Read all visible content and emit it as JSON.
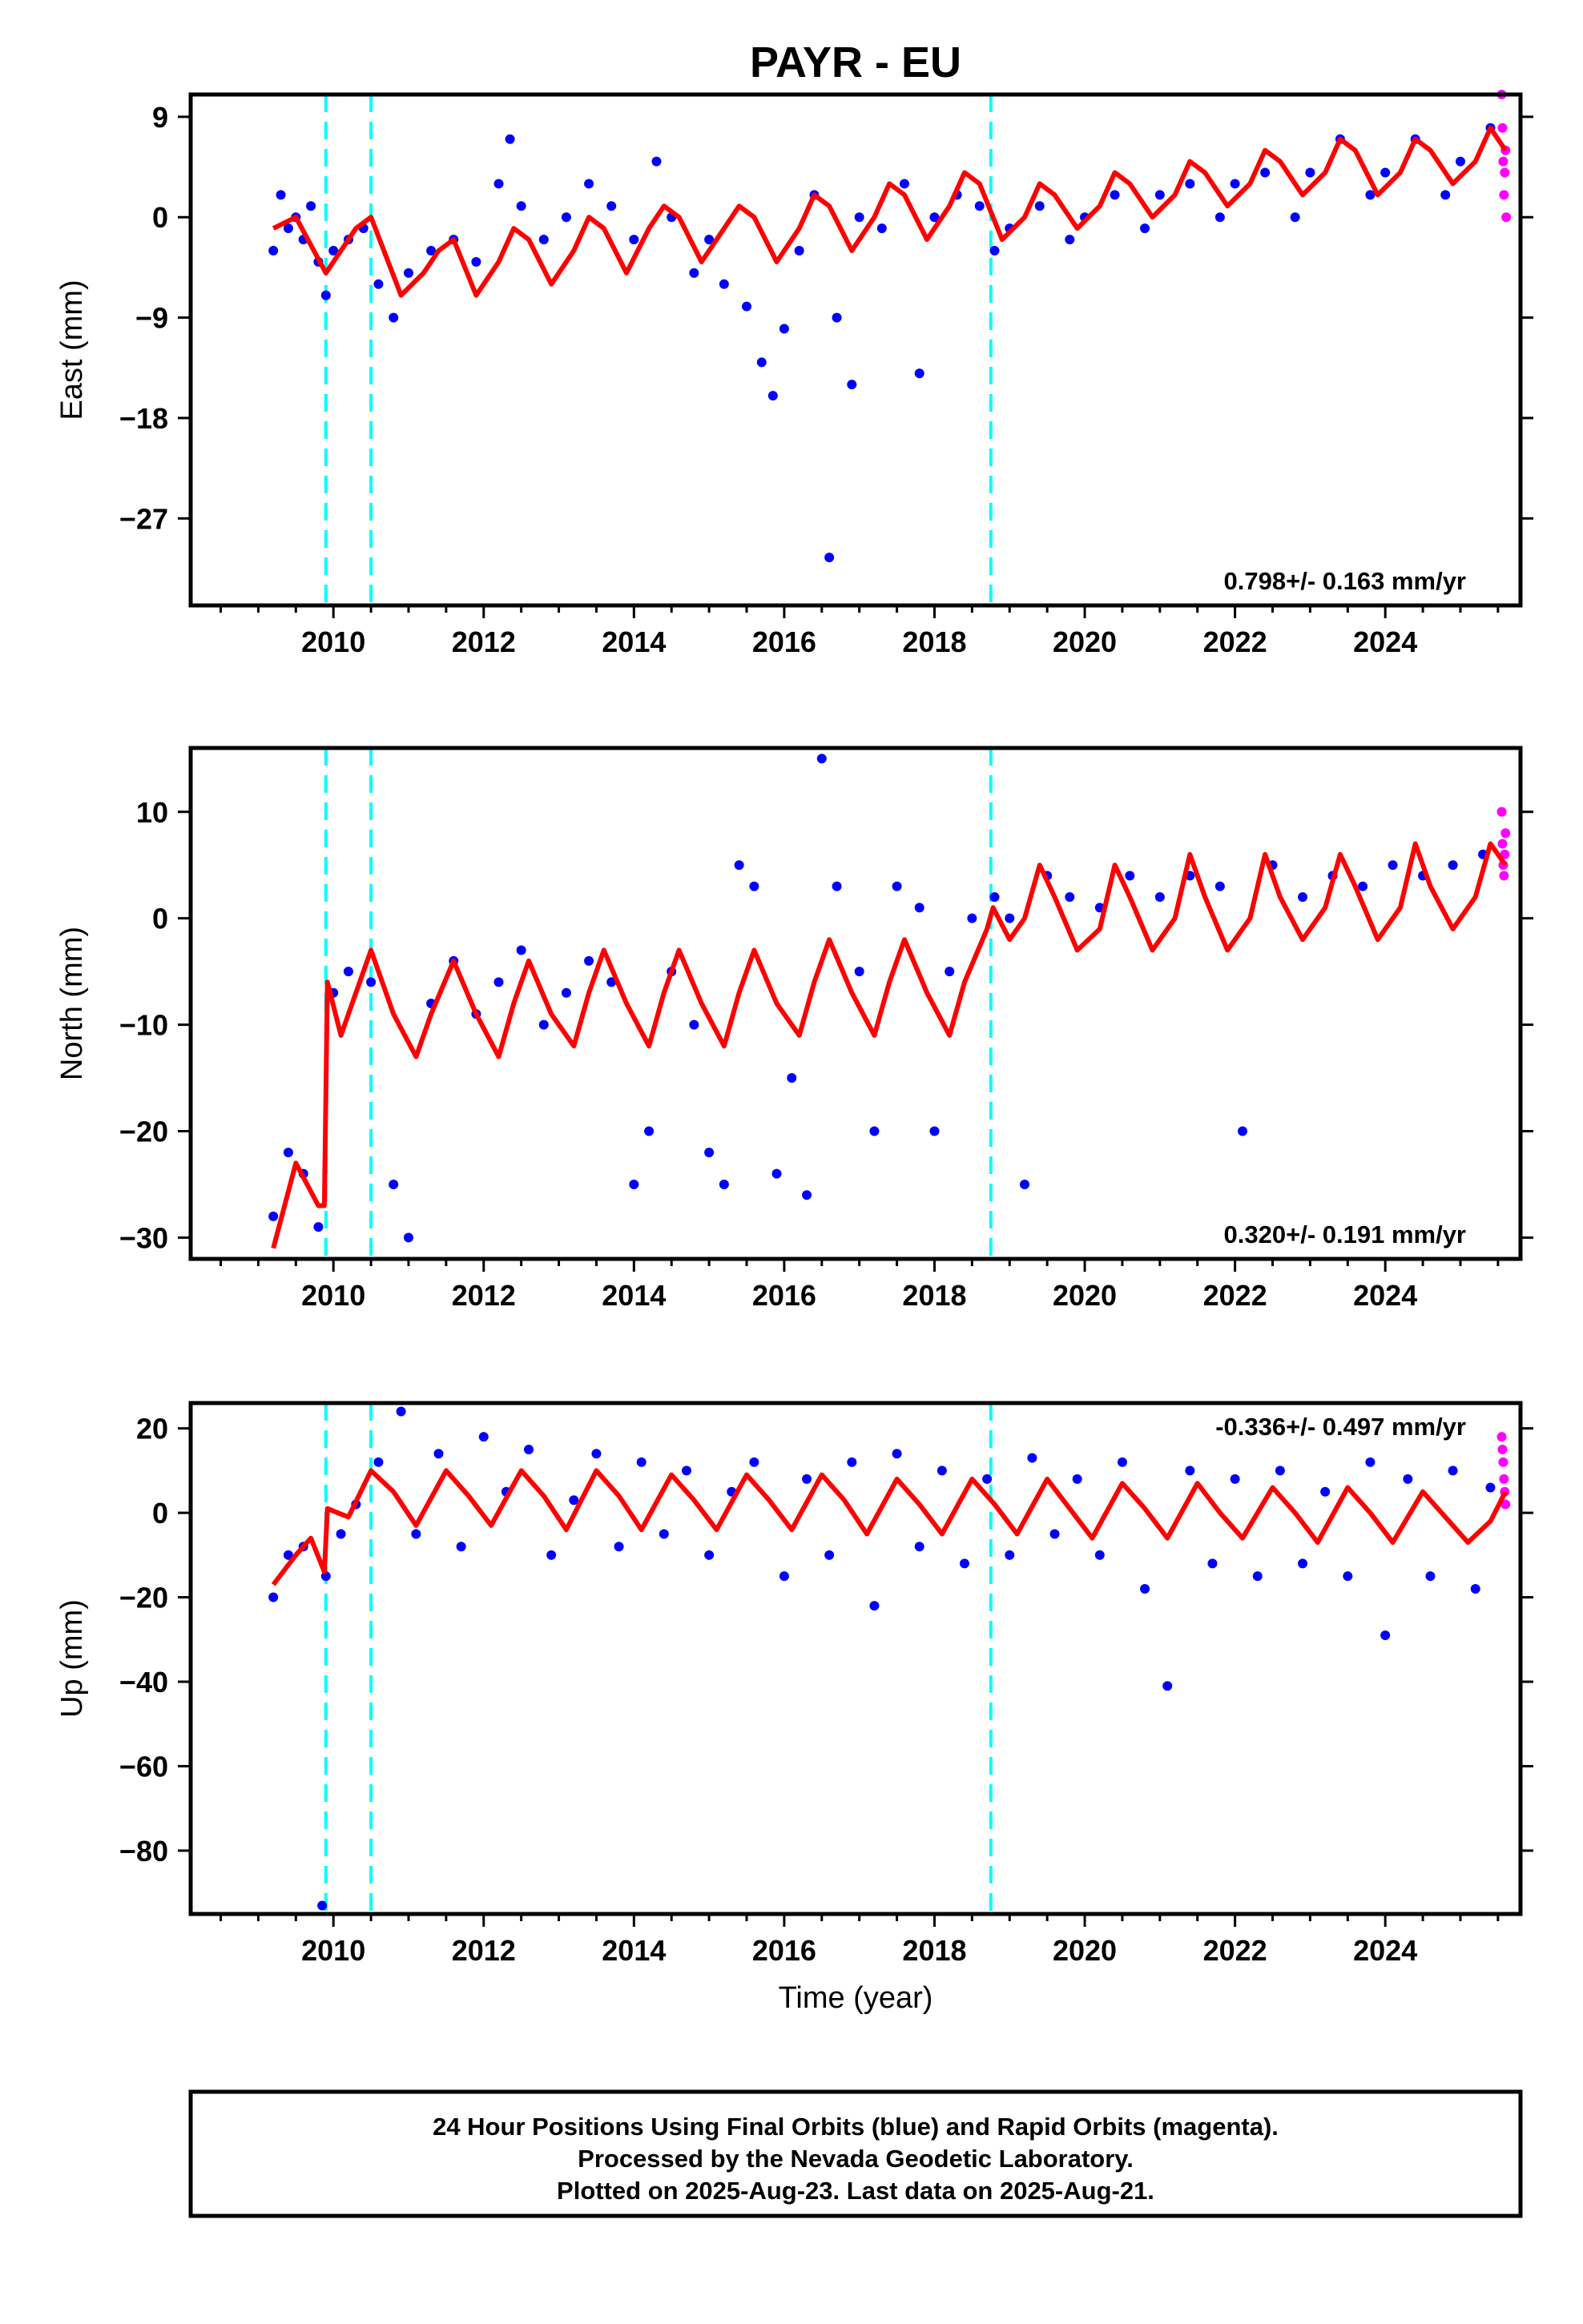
{
  "title": "PAYR - EU",
  "xlabel": "Time (year)",
  "footer": {
    "line1": "24 Hour Positions Using Final Orbits (blue) and Rapid Orbits (magenta).",
    "line2": "Processed by the Nevada Geodetic Laboratory.",
    "line3": "Plotted on 2025-Aug-23. Last data on 2025-Aug-21."
  },
  "colors": {
    "final": "#0000ff",
    "rapid": "#ff00ff",
    "model": "#ff0000",
    "offsets": "#00ffff"
  },
  "chart_data": [
    {
      "type": "scatter",
      "ylabel": "East (mm)",
      "rate": "0.798+/- 0.163 mm/yr",
      "rate_position": "bottom-right",
      "xlim": [
        2008.1,
        2025.8
      ],
      "ylim": [
        -34.8,
        11
      ],
      "xticks": [
        2010,
        2012,
        2014,
        2016,
        2018,
        2020,
        2022,
        2024
      ],
      "yticks": [
        9,
        0,
        -9,
        -18,
        -27
      ],
      "tick_labels": [
        "9",
        "0",
        "−9",
        "−18",
        "−27"
      ],
      "x_tick_labels": [
        "2010",
        "2012",
        "2014",
        "2016",
        "2018",
        "2020",
        "2022",
        "2024"
      ],
      "offset_lines": [
        2009.9,
        2010.5,
        2018.75
      ],
      "series": [
        {
          "name": "Final Orbits (blue)",
          "style": "points",
          "x": [
            2009.2,
            2009.3,
            2009.4,
            2009.5,
            2009.6,
            2009.7,
            2009.8,
            2009.9,
            2010.0,
            2010.2,
            2010.4,
            2010.6,
            2010.8,
            2011.0,
            2011.3,
            2011.6,
            2011.9,
            2012.2,
            2012.35,
            2012.5,
            2012.8,
            2013.1,
            2013.4,
            2013.7,
            2014.0,
            2014.3,
            2014.5,
            2014.8,
            2015.0,
            2015.2,
            2015.5,
            2015.7,
            2015.85,
            2016.0,
            2016.2,
            2016.4,
            2016.6,
            2016.7,
            2016.9,
            2017.0,
            2017.3,
            2017.6,
            2017.8,
            2018.0,
            2018.3,
            2018.6,
            2018.8,
            2019.0,
            2019.4,
            2019.8,
            2020.0,
            2020.4,
            2020.8,
            2021.0,
            2021.4,
            2021.8,
            2022.0,
            2022.4,
            2022.8,
            2023.0,
            2023.4,
            2023.8,
            2024.0,
            2024.4,
            2024.8,
            2025.0,
            2025.4
          ],
          "y": [
            -3,
            2,
            -1,
            0,
            -2,
            1,
            -4,
            -7,
            -3,
            -2,
            -1,
            -6,
            -9,
            -5,
            -3,
            -2,
            -4,
            3,
            7,
            1,
            -2,
            0,
            3,
            1,
            -2,
            5,
            0,
            -5,
            -2,
            -6,
            -8,
            -13,
            -16,
            -10,
            -3,
            2,
            -30.5,
            -9,
            -15,
            0,
            -1,
            3,
            -14,
            0,
            2,
            1,
            -3,
            -1,
            1,
            -2,
            0,
            2,
            -1,
            2,
            3,
            0,
            3,
            4,
            0,
            4,
            7,
            2,
            4,
            7,
            2,
            5,
            8
          ]
        },
        {
          "name": "Rapid Orbits (magenta)",
          "style": "points",
          "x": [
            2025.55,
            2025.56,
            2025.57,
            2025.58,
            2025.59,
            2025.6,
            2025.61
          ],
          "y": [
            11,
            8,
            5,
            2,
            4,
            6,
            0
          ]
        },
        {
          "name": "Model fit",
          "style": "line",
          "x": [
            2009.2,
            2009.5,
            2009.9,
            2010.1,
            2010.3,
            2010.5,
            2010.9,
            2011.2,
            2011.4,
            2011.6,
            2011.9,
            2012.2,
            2012.4,
            2012.6,
            2012.9,
            2013.2,
            2013.4,
            2013.6,
            2013.9,
            2014.2,
            2014.4,
            2014.6,
            2014.9,
            2015.2,
            2015.4,
            2015.6,
            2015.9,
            2016.2,
            2016.4,
            2016.6,
            2016.9,
            2017.2,
            2017.4,
            2017.6,
            2017.9,
            2018.2,
            2018.4,
            2018.6,
            2018.9,
            2019.2,
            2019.4,
            2019.6,
            2019.9,
            2020.2,
            2020.4,
            2020.6,
            2020.9,
            2021.2,
            2021.4,
            2021.6,
            2021.9,
            2022.2,
            2022.4,
            2022.6,
            2022.9,
            2023.2,
            2023.4,
            2023.6,
            2023.9,
            2024.2,
            2024.4,
            2024.6,
            2024.9,
            2025.2,
            2025.4,
            2025.6
          ],
          "y": [
            -1,
            0,
            -5,
            -3,
            -1,
            0,
            -7,
            -5,
            -3,
            -2,
            -7,
            -4,
            -1,
            -2,
            -6,
            -3,
            0,
            -1,
            -5,
            -1,
            1,
            0,
            -4,
            -1,
            1,
            0,
            -4,
            -1,
            2,
            1,
            -3,
            0,
            3,
            2,
            -2,
            1,
            4,
            3,
            -2,
            0,
            3,
            2,
            -1,
            1,
            4,
            3,
            0,
            2,
            5,
            4,
            1,
            3,
            6,
            5,
            2,
            4,
            7,
            6,
            2,
            4,
            7,
            6,
            3,
            5,
            8,
            6
          ]
        }
      ]
    },
    {
      "type": "scatter",
      "ylabel": "North (mm)",
      "rate": "0.320+/- 0.191 mm/yr",
      "rate_position": "bottom-right",
      "xlim": [
        2008.1,
        2025.8
      ],
      "ylim": [
        -32,
        16
      ],
      "xticks": [
        2010,
        2012,
        2014,
        2016,
        2018,
        2020,
        2022,
        2024
      ],
      "yticks": [
        10,
        0,
        -10,
        -20,
        -30
      ],
      "tick_labels": [
        "10",
        "0",
        "−10",
        "−20",
        "−30"
      ],
      "x_tick_labels": [
        "2010",
        "2012",
        "2014",
        "2016",
        "2018",
        "2020",
        "2022",
        "2024"
      ],
      "offset_lines": [
        2009.9,
        2010.5,
        2018.75
      ],
      "series": [
        {
          "name": "Final Orbits (blue)",
          "style": "points",
          "x": [
            2009.2,
            2009.4,
            2009.6,
            2009.8,
            2010.0,
            2010.2,
            2010.5,
            2010.8,
            2011.0,
            2011.3,
            2011.6,
            2011.9,
            2012.2,
            2012.5,
            2012.8,
            2013.1,
            2013.4,
            2013.7,
            2014.0,
            2014.2,
            2014.5,
            2014.8,
            2015.0,
            2015.2,
            2015.4,
            2015.6,
            2015.9,
            2016.1,
            2016.3,
            2016.5,
            2016.7,
            2017.0,
            2017.2,
            2017.5,
            2017.8,
            2018.0,
            2018.2,
            2018.5,
            2018.8,
            2019.0,
            2019.2,
            2019.5,
            2019.8,
            2020.2,
            2020.6,
            2021.0,
            2021.4,
            2021.8,
            2022.1,
            2022.5,
            2022.9,
            2023.3,
            2023.7,
            2024.1,
            2024.5,
            2024.9,
            2025.3
          ],
          "y": [
            -28,
            -22,
            -24,
            -29,
            -7,
            -5,
            -6,
            -25,
            -30,
            -8,
            -4,
            -9,
            -6,
            -3,
            -10,
            -7,
            -4,
            -6,
            -25,
            -20,
            -5,
            -10,
            -22,
            -25,
            5,
            3,
            -24,
            -15,
            -26,
            15,
            3,
            -5,
            -20,
            3,
            1,
            -20,
            -5,
            0,
            2,
            0,
            -25,
            4,
            2,
            1,
            4,
            2,
            4,
            3,
            -20,
            5,
            2,
            4,
            3,
            5,
            4,
            5,
            6
          ]
        },
        {
          "name": "Rapid Orbits (magenta)",
          "style": "points",
          "x": [
            2025.55,
            2025.56,
            2025.57,
            2025.58,
            2025.59,
            2025.6
          ],
          "y": [
            10,
            7,
            5,
            4,
            6,
            8
          ]
        },
        {
          "name": "Model fit",
          "style": "line",
          "x": [
            2009.2,
            2009.5,
            2009.8,
            2009.88,
            2009.92,
            2010.1,
            2010.3,
            2010.5,
            2010.8,
            2011.1,
            2011.3,
            2011.6,
            2011.9,
            2012.2,
            2012.4,
            2012.6,
            2012.9,
            2013.2,
            2013.4,
            2013.6,
            2013.9,
            2014.2,
            2014.4,
            2014.6,
            2014.9,
            2015.2,
            2015.4,
            2015.6,
            2015.9,
            2016.2,
            2016.4,
            2016.6,
            2016.9,
            2017.2,
            2017.4,
            2017.6,
            2017.9,
            2018.2,
            2018.4,
            2018.7,
            2018.78,
            2019.0,
            2019.2,
            2019.4,
            2019.6,
            2019.9,
            2020.2,
            2020.4,
            2020.6,
            2020.9,
            2021.2,
            2021.4,
            2021.6,
            2021.9,
            2022.2,
            2022.4,
            2022.6,
            2022.9,
            2023.2,
            2023.4,
            2023.6,
            2023.9,
            2024.2,
            2024.4,
            2024.6,
            2024.9,
            2025.2,
            2025.4,
            2025.6
          ],
          "y": [
            -31,
            -23,
            -27,
            -27,
            -6,
            -11,
            -7,
            -3,
            -9,
            -13,
            -9,
            -4,
            -9,
            -13,
            -8,
            -4,
            -9,
            -12,
            -7,
            -3,
            -8,
            -12,
            -7,
            -3,
            -8,
            -12,
            -7,
            -3,
            -8,
            -11,
            -6,
            -2,
            -7,
            -11,
            -6,
            -2,
            -7,
            -11,
            -6,
            -1,
            1,
            -2,
            0,
            5,
            2,
            -3,
            -1,
            5,
            2,
            -3,
            0,
            6,
            2,
            -3,
            0,
            6,
            2,
            -2,
            1,
            6,
            3,
            -2,
            1,
            7,
            3,
            -1,
            2,
            7,
            5
          ]
        }
      ]
    },
    {
      "type": "scatter",
      "ylabel": "Up (mm)",
      "rate": "-0.336+/- 0.497 mm/yr",
      "rate_position": "top-right",
      "xlim": [
        2008.1,
        2025.8
      ],
      "ylim": [
        -95,
        26
      ],
      "xticks": [
        2010,
        2012,
        2014,
        2016,
        2018,
        2020,
        2022,
        2024
      ],
      "yticks": [
        20,
        0,
        -20,
        -40,
        -60,
        -80
      ],
      "tick_labels": [
        "20",
        "0",
        "−20",
        "−40",
        "−60",
        "−80"
      ],
      "x_tick_labels": [
        "2010",
        "2012",
        "2014",
        "2016",
        "2018",
        "2020",
        "2022",
        "2024"
      ],
      "offset_lines": [
        2009.9,
        2010.5,
        2018.75
      ],
      "series": [
        {
          "name": "Final Orbits (blue)",
          "style": "points",
          "x": [
            2009.2,
            2009.4,
            2009.6,
            2009.85,
            2009.9,
            2010.1,
            2010.3,
            2010.6,
            2010.9,
            2011.1,
            2011.4,
            2011.7,
            2012.0,
            2012.3,
            2012.6,
            2012.9,
            2013.2,
            2013.5,
            2013.8,
            2014.1,
            2014.4,
            2014.7,
            2015.0,
            2015.3,
            2015.6,
            2016.0,
            2016.3,
            2016.6,
            2016.9,
            2017.2,
            2017.5,
            2017.8,
            2018.1,
            2018.4,
            2018.7,
            2019.0,
            2019.3,
            2019.6,
            2019.9,
            2020.2,
            2020.5,
            2020.8,
            2021.1,
            2021.4,
            2021.7,
            2022.0,
            2022.3,
            2022.6,
            2022.9,
            2023.2,
            2023.5,
            2023.8,
            2024.0,
            2024.3,
            2024.6,
            2024.9,
            2025.2,
            2025.4
          ],
          "y": [
            -20,
            -10,
            -8,
            -93,
            -15,
            -5,
            2,
            12,
            24,
            -5,
            14,
            -8,
            18,
            5,
            15,
            -10,
            3,
            14,
            -8,
            12,
            -5,
            10,
            -10,
            5,
            12,
            -15,
            8,
            -10,
            12,
            -22,
            14,
            -8,
            10,
            -12,
            8,
            -10,
            13,
            -5,
            8,
            -10,
            12,
            -18,
            -41,
            10,
            -12,
            8,
            -15,
            10,
            -12,
            5,
            -15,
            12,
            -29,
            8,
            -15,
            10,
            -18,
            6
          ]
        },
        {
          "name": "Rapid Orbits (magenta)",
          "style": "points",
          "x": [
            2025.55,
            2025.56,
            2025.57,
            2025.58,
            2025.59,
            2025.6
          ],
          "y": [
            18,
            15,
            12,
            8,
            5,
            2
          ]
        },
        {
          "name": "Model fit",
          "style": "line",
          "x": [
            2009.2,
            2009.5,
            2009.7,
            2009.88,
            2009.92,
            2010.2,
            2010.5,
            2010.8,
            2011.1,
            2011.5,
            2011.8,
            2012.1,
            2012.5,
            2012.8,
            2013.1,
            2013.5,
            2013.8,
            2014.1,
            2014.5,
            2014.8,
            2015.1,
            2015.5,
            2015.8,
            2016.1,
            2016.5,
            2016.8,
            2017.1,
            2017.5,
            2017.8,
            2018.1,
            2018.5,
            2018.8,
            2019.1,
            2019.5,
            2019.8,
            2020.1,
            2020.5,
            2020.8,
            2021.1,
            2021.5,
            2021.8,
            2022.1,
            2022.5,
            2022.8,
            2023.1,
            2023.5,
            2023.8,
            2024.1,
            2024.5,
            2024.8,
            2025.1,
            2025.4,
            2025.6
          ],
          "y": [
            -17,
            -10,
            -6,
            -14,
            1,
            -1,
            10,
            5,
            -3,
            10,
            4,
            -3,
            10,
            4,
            -4,
            10,
            4,
            -4,
            9,
            3,
            -4,
            9,
            3,
            -4,
            9,
            3,
            -5,
            8,
            2,
            -5,
            8,
            2,
            -5,
            8,
            1,
            -6,
            7,
            1,
            -6,
            7,
            0,
            -6,
            6,
            0,
            -7,
            6,
            0,
            -7,
            5,
            -1,
            -7,
            -2,
            5
          ]
        }
      ]
    }
  ]
}
